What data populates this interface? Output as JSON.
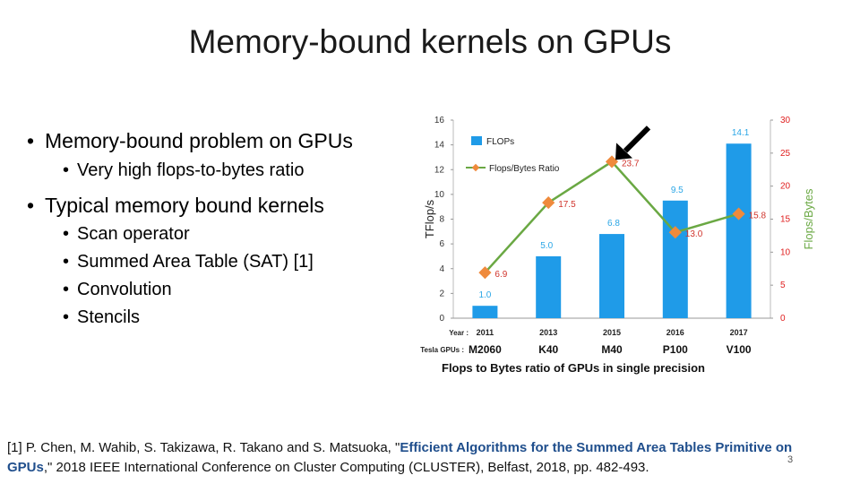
{
  "slide": {
    "title": "Memory-bound kernels on GPUs",
    "bullets": [
      {
        "text": "Memory-bound problem on GPUs",
        "level": 1
      },
      {
        "text": "Very high flops-to-bytes ratio",
        "level": 2
      },
      {
        "text": "Typical memory bound kernels",
        "level": 1
      },
      {
        "text": "Scan operator",
        "level": 2
      },
      {
        "text": "Summed Area Table (SAT) [1]",
        "level": 2
      },
      {
        "text": "Convolution",
        "level": 2
      },
      {
        "text": "Stencils",
        "level": 2
      }
    ],
    "reference": {
      "prefix": "[1] P. Chen, M. Wahib, S. Takizawa, R. Takano and S. Matsuoka, \"",
      "highlight": "Efficient Algorithms for the Summed Area Tables Primitive on GPUs",
      "suffix": ",\" 2018 IEEE International Conference on Cluster Computing (CLUSTER), Belfast, 2018, pp. 482-493."
    },
    "page_number": "3",
    "caption": "Flops to Bytes ratio of GPUs in single precision"
  },
  "colors": {
    "bar": "#1f9be8",
    "bar_label": "#2aa6e6",
    "line": "#6aa843",
    "marker": "#ef8a3c",
    "right_axis": "#e02020",
    "ratio_label": "#d0342c"
  },
  "chart_data": {
    "type": "bar+line",
    "categories": [
      "2011",
      "2013",
      "2015",
      "2016",
      "2017"
    ],
    "x_prefix_label": "Year :",
    "tesla_prefix_label": "Tesla GPUs :",
    "gpus": [
      "M2060",
      "K40",
      "M40",
      "P100",
      "V100"
    ],
    "ylabel": "TFlop/s",
    "y2label": "Flops/Bytes",
    "ylim": [
      0,
      16
    ],
    "y2lim": [
      0,
      30
    ],
    "yticks": [
      0,
      2,
      4,
      6,
      8,
      10,
      12,
      14,
      16
    ],
    "y2ticks": [
      0,
      5,
      10,
      15,
      20,
      25,
      30
    ],
    "legend_position": "top-left",
    "series": [
      {
        "name": "FLOPs",
        "type": "bar",
        "axis": "left",
        "values": [
          1.0,
          5.0,
          6.8,
          9.5,
          14.1
        ],
        "labels": [
          "1.0",
          "5.0",
          "6.8",
          "9.5",
          "14.1"
        ]
      },
      {
        "name": "Flops/Bytes Ratio",
        "type": "line",
        "axis": "right",
        "values": [
          6.9,
          17.5,
          23.7,
          13.0,
          15.8
        ],
        "labels": [
          "6.9",
          "17.5",
          "23.7",
          "13.0",
          "15.8"
        ]
      }
    ],
    "annotation": "arrow pointing to 23.7 (2015) peak"
  }
}
